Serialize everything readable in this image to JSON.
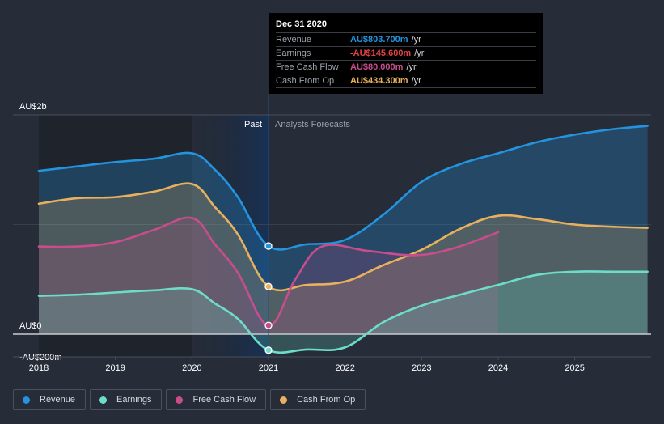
{
  "tooltip": {
    "title": "Dec 31 2020",
    "rows": [
      {
        "label": "Revenue",
        "value": "AU$803.700m",
        "unit": "/yr",
        "color": "#2394df"
      },
      {
        "label": "Earnings",
        "value": "-AU$145.600m",
        "unit": "/yr",
        "color": "#e64141"
      },
      {
        "label": "Free Cash Flow",
        "value": "AU$80.000m",
        "unit": "/yr",
        "color": "#c94d8c"
      },
      {
        "label": "Cash From Op",
        "value": "AU$434.300m",
        "unit": "/yr",
        "color": "#e9b15e"
      }
    ]
  },
  "legend": [
    {
      "label": "Revenue",
      "color": "#2394df"
    },
    {
      "label": "Earnings",
      "color": "#6ddcc9"
    },
    {
      "label": "Free Cash Flow",
      "color": "#c94d8c"
    },
    {
      "label": "Cash From Op",
      "color": "#e9b15e"
    }
  ],
  "chart_data": {
    "type": "line",
    "title": "",
    "xlabel": "",
    "ylabel": "",
    "y_tick_labels": [
      {
        "value": 2.0,
        "label": "AU$2b"
      },
      {
        "value": 0.0,
        "label": "AU$0"
      },
      {
        "value": -0.2,
        "label": "-AU$200m"
      }
    ],
    "x_tick_labels": [
      "2018",
      "2019",
      "2020",
      "2021",
      "2022",
      "2023",
      "2024",
      "2025"
    ],
    "x_ticks": [
      2018,
      2019,
      2020,
      2021,
      2022,
      2023,
      2024,
      2025
    ],
    "xlim": [
      2017.75,
      2025.95
    ],
    "ylim": [
      -0.2,
      2.0
    ],
    "units": "AU$ billions",
    "past_label": "Past",
    "forecast_label": "Analysts Forecasts",
    "divider_x": 2021.0,
    "highlight_from_x": 2020.0,
    "grid": true,
    "legend_position": "bottom-left",
    "series": [
      {
        "name": "Revenue",
        "color": "#2394df",
        "points": [
          [
            2018.0,
            1.49
          ],
          [
            2018.5,
            1.53
          ],
          [
            2019.0,
            1.57
          ],
          [
            2019.5,
            1.6
          ],
          [
            2020.0,
            1.65
          ],
          [
            2020.3,
            1.5
          ],
          [
            2020.6,
            1.25
          ],
          [
            2021.0,
            0.804
          ],
          [
            2021.5,
            0.82
          ],
          [
            2022.0,
            0.86
          ],
          [
            2022.5,
            1.09
          ],
          [
            2023.0,
            1.39
          ],
          [
            2023.5,
            1.55
          ],
          [
            2024.0,
            1.65
          ],
          [
            2024.5,
            1.75
          ],
          [
            2025.0,
            1.82
          ],
          [
            2025.5,
            1.87
          ],
          [
            2025.95,
            1.9
          ]
        ]
      },
      {
        "name": "Cash From Op",
        "color": "#e9b15e",
        "points": [
          [
            2018.0,
            1.19
          ],
          [
            2018.5,
            1.24
          ],
          [
            2019.0,
            1.25
          ],
          [
            2019.5,
            1.3
          ],
          [
            2020.0,
            1.37
          ],
          [
            2020.3,
            1.16
          ],
          [
            2020.6,
            0.91
          ],
          [
            2021.0,
            0.434
          ],
          [
            2021.5,
            0.45
          ],
          [
            2022.0,
            0.48
          ],
          [
            2022.5,
            0.63
          ],
          [
            2023.0,
            0.77
          ],
          [
            2023.5,
            0.96
          ],
          [
            2024.0,
            1.08
          ],
          [
            2024.5,
            1.05
          ],
          [
            2025.0,
            1.0
          ],
          [
            2025.5,
            0.98
          ],
          [
            2025.95,
            0.97
          ]
        ]
      },
      {
        "name": "Free Cash Flow",
        "color": "#c94d8c",
        "points": [
          [
            2018.0,
            0.8
          ],
          [
            2018.5,
            0.8
          ],
          [
            2019.0,
            0.84
          ],
          [
            2019.5,
            0.95
          ],
          [
            2020.0,
            1.06
          ],
          [
            2020.3,
            0.82
          ],
          [
            2020.6,
            0.56
          ],
          [
            2021.0,
            0.08
          ],
          [
            2021.35,
            0.5
          ],
          [
            2021.7,
            0.8
          ],
          [
            2022.3,
            0.76
          ],
          [
            2022.9,
            0.72
          ],
          [
            2023.4,
            0.78
          ],
          [
            2024.0,
            0.93
          ]
        ]
      },
      {
        "name": "Earnings",
        "color": "#6ddcc9",
        "points": [
          [
            2018.0,
            0.35
          ],
          [
            2018.5,
            0.36
          ],
          [
            2019.0,
            0.38
          ],
          [
            2019.5,
            0.4
          ],
          [
            2020.0,
            0.41
          ],
          [
            2020.3,
            0.28
          ],
          [
            2020.6,
            0.14
          ],
          [
            2021.0,
            -0.146
          ],
          [
            2021.5,
            -0.14
          ],
          [
            2022.0,
            -0.12
          ],
          [
            2022.5,
            0.11
          ],
          [
            2023.0,
            0.26
          ],
          [
            2023.5,
            0.36
          ],
          [
            2024.0,
            0.45
          ],
          [
            2024.5,
            0.54
          ],
          [
            2025.0,
            0.57
          ],
          [
            2025.5,
            0.57
          ],
          [
            2025.95,
            0.57
          ]
        ]
      }
    ],
    "markers_at_x": 2021.0
  }
}
